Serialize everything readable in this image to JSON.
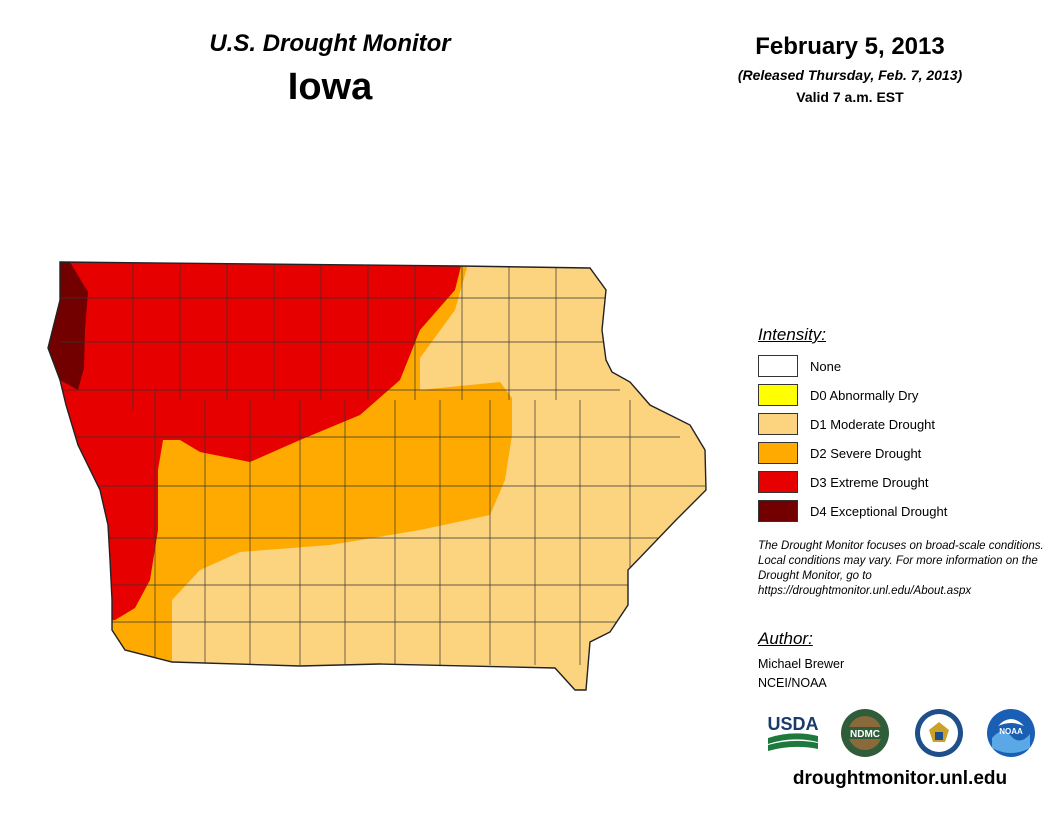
{
  "header": {
    "product": "U.S. Drought Monitor",
    "state": "Iowa",
    "date": "February 5, 2013",
    "released": "(Released Thursday, Feb. 7, 2013)",
    "valid": "Valid 7 a.m. EST"
  },
  "map": {
    "region": "Iowa",
    "colors": {
      "None": "#ffffff",
      "D0": "#ffff00",
      "D1": "#fcd37f",
      "D2": "#ffaa00",
      "D3": "#e60000",
      "D4": "#730000"
    }
  },
  "legend": {
    "title": "Intensity:",
    "items": [
      {
        "label": "None",
        "color": "#ffffff"
      },
      {
        "label": "D0 Abnormally Dry",
        "color": "#ffff00"
      },
      {
        "label": "D1 Moderate Drought",
        "color": "#fcd37f"
      },
      {
        "label": "D2 Severe Drought",
        "color": "#ffaa00"
      },
      {
        "label": "D3 Extreme Drought",
        "color": "#e60000"
      },
      {
        "label": "D4 Exceptional Drought",
        "color": "#730000"
      }
    ]
  },
  "note": "The Drought Monitor focuses on broad-scale conditions. Local conditions may vary. For more information on the Drought Monitor, go to https://droughtmonitor.unl.edu/About.aspx",
  "author": {
    "title": "Author:",
    "name": "Michael Brewer",
    "org": "NCEI/NOAA"
  },
  "logos": {
    "usda": "USDA",
    "ndmc": "NDMC",
    "noaa": "NOAA"
  },
  "footer": {
    "url": "droughtmonitor.unl.edu"
  }
}
